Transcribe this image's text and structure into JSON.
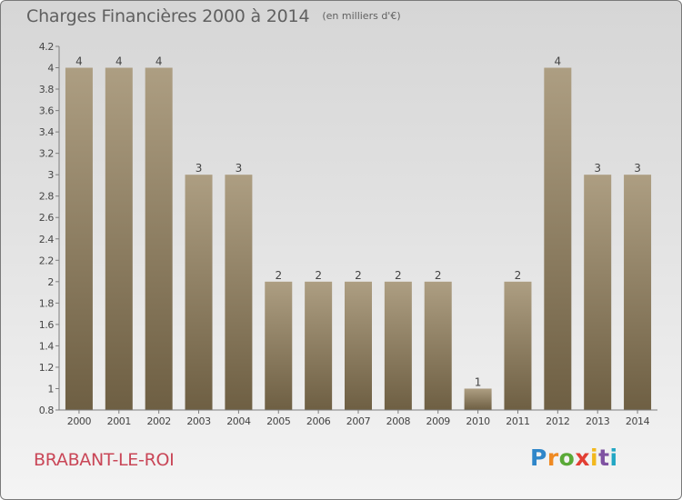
{
  "chart_data": {
    "type": "bar",
    "title": "Charges Financières 2000 à 2014",
    "subtitle": "(en milliers d'€)",
    "categories": [
      "2000",
      "2001",
      "2002",
      "2003",
      "2004",
      "2005",
      "2006",
      "2007",
      "2008",
      "2009",
      "2010",
      "2011",
      "2012",
      "2013",
      "2014"
    ],
    "values": [
      4,
      4,
      4,
      3,
      3,
      2,
      2,
      2,
      2,
      2,
      1,
      2,
      4,
      3,
      3
    ],
    "data_labels": [
      "4",
      "4",
      "4",
      "3",
      "3",
      "2",
      "2",
      "2",
      "2",
      "2",
      "1",
      "2",
      "4",
      "3",
      "3"
    ],
    "ylim": [
      0.8,
      4.2
    ],
    "yticks": [
      "0.8",
      "1",
      "1.2",
      "1.4",
      "1.6",
      "1.8",
      "2",
      "2.2",
      "2.4",
      "2.6",
      "2.8",
      "3",
      "3.2",
      "3.4",
      "3.6",
      "3.8",
      "4",
      "4.2"
    ],
    "bar_colors": {
      "top": "#ad9e82",
      "bottom": "#6e5f43"
    },
    "grid": false,
    "legend": "none"
  },
  "commune_name": "BRABANT-LE-ROI",
  "logo_text": "Proxiti"
}
